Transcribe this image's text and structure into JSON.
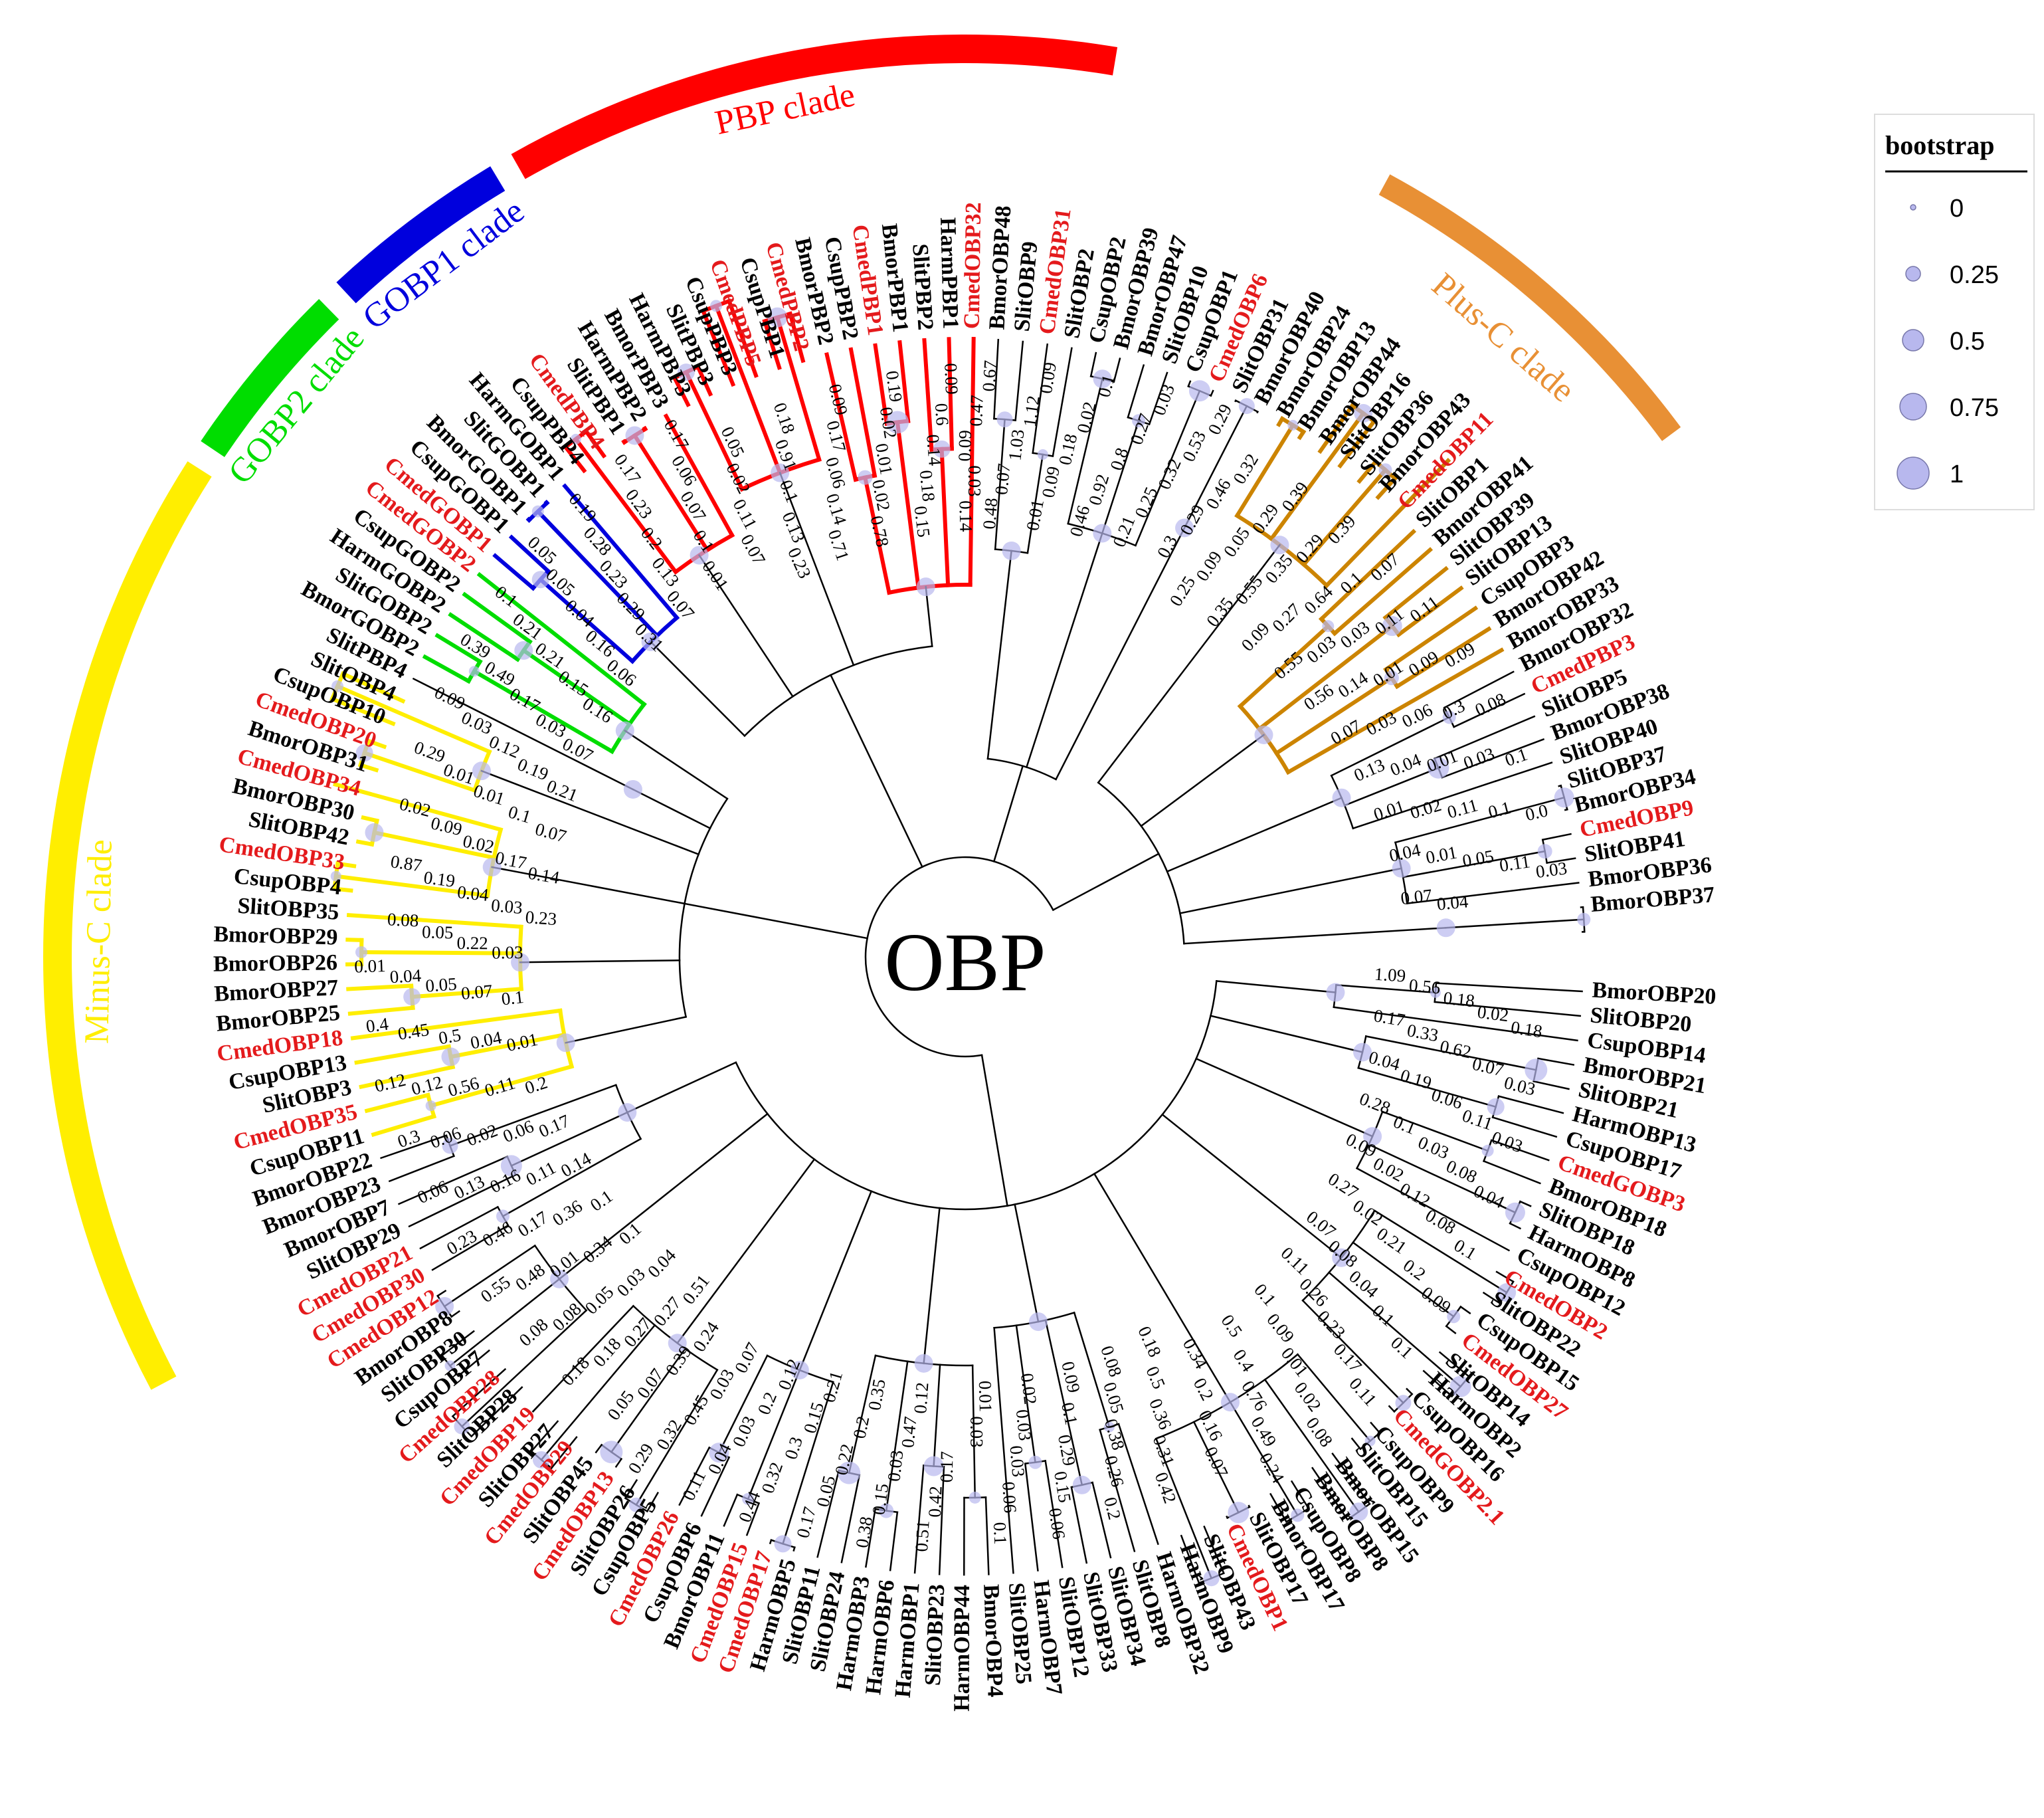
{
  "center_label": "OBP",
  "colors": {
    "cmed_highlight": "#e41a1c",
    "PBP": "#ff0000",
    "GOBP1": "#0000dd",
    "GOBP2": "#00dd00",
    "Minus-C": "#ffee00",
    "Plus-C": "#cc8400",
    "Plus-C-band": "#e89035",
    "bootstrap_dot": "#b8b8ee"
  },
  "clades": [
    {
      "id": "plusc",
      "label": "Plus-C clade"
    },
    {
      "id": "pbp",
      "label": "PBP clade"
    },
    {
      "id": "gobp1",
      "label": "GOBP1 clade"
    },
    {
      "id": "gobp2",
      "label": "GOBP2 clade"
    },
    {
      "id": "minusc",
      "label": "Minus-C clade"
    }
  ],
  "legend": {
    "title": "bootstrap",
    "items": [
      "0",
      "0.25",
      "0.5",
      "0.75",
      "1"
    ]
  },
  "leaves": [
    "BmorOBP20",
    "SlitOBP20",
    "CsupOBP14",
    "BmorOBP21",
    "SlitOBP21",
    "HarmOBP13",
    "CsupOBP17",
    "CmedGOBP3",
    "BmorOBP18",
    "SlitOBP18",
    "HarmOBP8",
    "CsupOBP12",
    "CmedOBP2",
    "SlitOBP22",
    "CsupOBP15",
    "CmedOBP27",
    "SlitOBP14",
    "HarmOBP2",
    "CsupOBP16",
    "CmedGOBP2.1",
    "CsupOBP9",
    "SlitOBP15",
    "BmorOBP15",
    "BmorOBP8",
    "CsupOBP8",
    "BmorOBP17",
    "SlitOBP17",
    "CmedOBP1",
    "SlitOBP43",
    "HarmOBP9",
    "HarmOBP32",
    "SlitOBP8",
    "SlitOBP34",
    "SlitOBP33",
    "SlitOBP12",
    "HarmOBP7",
    "SlitOBP25",
    "BmorOBP4",
    "HarmOBP44",
    "SlitOBP23",
    "HarmOBP1",
    "HarmOBP6",
    "HarmOBP3",
    "SlitOBP24",
    "SlitOBP11",
    "HarmOBP5",
    "CmedOBP17",
    "CmedOBP15",
    "BmorOBP11",
    "CsupOBP6",
    "CmedOBP26",
    "CsupOBP5",
    "SlitOBP26",
    "CmedOBP13",
    "SlitOBP45",
    "CmedOBP29",
    "SlitOBP27",
    "CmedOBP19",
    "SlitOBP28",
    "CmedOBP28",
    "CsupOBP7",
    "SlitOBP30",
    "BmorOBP8",
    "CmedOBP12",
    "CmedOBP30",
    "CmedOBP21",
    "SlitOBP29",
    "BmorOBP7",
    "BmorOBP23",
    "BmorOBP22",
    "CsupOBP11",
    "CmedOBP35",
    "SlitOBP3",
    "CsupOBP13",
    "CmedOBP18",
    "BmorOBP25",
    "BmorOBP27",
    "BmorOBP26",
    "BmorOBP29",
    "SlitOBP35",
    "CsupOBP4",
    "CmedOBP33",
    "SlitOBP42",
    "BmorOBP30",
    "CmedOBP34",
    "BmorOBP31",
    "CmedOBP20",
    "CsupOBP10",
    "SlitOBP4",
    "SlitPBP4",
    "BmorGOBP2",
    "SlitGOBP2",
    "HarmGOBP2",
    "CsupGOBP2",
    "CmedGOBP2",
    "CmedGOBP1",
    "CsupGOBP1",
    "BmorGOBP1",
    "SlitGOBP1",
    "HarmGOBP1",
    "CsupPBP4",
    "CmedPBP4",
    "SlitPBP1",
    "HarmPBP2",
    "BmorPBP3",
    "HarmPBP3",
    "SlitPBP3",
    "CsupPBP3",
    "CmedPBP5",
    "CsupPBP1",
    "CmedPBP2",
    "BmorPBP2",
    "CsupPBP2",
    "CmedPBP1",
    "BmorPBP1",
    "SlitPBP2",
    "HarmPBP1",
    "CmedOBP32",
    "BmorOBP48",
    "SlitOBP9",
    "CmedOBP31",
    "SlitOBP2",
    "CsupOBP2",
    "BmorOBP39",
    "BmorOBP47",
    "SlitOBP10",
    "CsupOBP1",
    "CmedOBP6",
    "SlitOBP31",
    "BmorOBP40",
    "BmorOBP24",
    "BmorOBP13",
    "BmorOBP44",
    "SlitOBP16",
    "SlitOBP36",
    "BmorOBP43",
    "CmedOBP11",
    "SlitOBP1",
    "BmorOBP41",
    "SlitOBP39",
    "SlitOBP13",
    "CsupOBP3",
    "BmorOBP42",
    "BmorOBP33",
    "BmorOBP32",
    "CmedPBP3",
    "SlitOBP5",
    "BmorOBP38",
    "SlitOBP40",
    "SlitOBP37",
    "BmorOBP34",
    "CmedOBP9",
    "SlitOBP41",
    "BmorOBP36",
    "BmorOBP37"
  ],
  "branch_labels": [
    "1.09",
    "0.56",
    "0.18",
    "0.02",
    "0.18",
    "0.17",
    "0.33",
    "0.62",
    "0.07",
    "0.03",
    "0.04",
    "0.19",
    "0.06",
    "0.11",
    "0.03",
    "0.28",
    "0.1",
    "0.03",
    "0.08",
    "0.04",
    "0.09",
    "0.02",
    "0.12",
    "0.08",
    "0.1",
    "0.27",
    "0.02",
    "0.21",
    "0.2",
    "0.09",
    "0.07",
    "0.08",
    "0.04",
    "0.1",
    "0.1",
    "0.11",
    "0.26",
    "0.23",
    "0.17",
    "0.11",
    "0.1",
    "0.09",
    "0.01",
    "0.02",
    "0.08",
    "0.5",
    "0.4",
    "0.76",
    "0.49",
    "0.24",
    "0.34",
    "0.2",
    "0.16",
    "0.07",
    "0.18",
    "0.5",
    "0.36",
    "0.31",
    "0.42",
    "0.08",
    "0.05",
    "0.38",
    "0.26",
    "0.2",
    "0.09",
    "0.1",
    "0.29",
    "0.15",
    "0.06",
    "0.02",
    "0.03",
    "0.03",
    "0.06",
    "0.1",
    "0.01",
    "0.03",
    "0.17",
    "0.42",
    "0.51",
    "0.12",
    "0.47",
    "0.03",
    "0.15",
    "0.38",
    "0.35",
    "0.2",
    "0.22",
    "0.05",
    "0.17",
    "0.21",
    "0.15",
    "0.3",
    "0.32",
    "0.44",
    "0.12",
    "0.2",
    "0.03",
    "0.04",
    "0.11",
    "0.07",
    "0.03",
    "0.45",
    "0.32",
    "0.29",
    "0.24",
    "0.39",
    "0.07",
    "0.05",
    "0.51",
    "0.27",
    "0.27",
    "0.18",
    "0.18",
    "0.04",
    "0.03",
    "0.05",
    "0.08",
    "0.08",
    "0.1",
    "0.34",
    "0.01",
    "0.48",
    "0.55",
    "0.1",
    "0.36",
    "0.17",
    "0.46",
    "0.23",
    "0.14",
    "0.11",
    "0.16",
    "0.13",
    "0.06",
    "0.17",
    "0.06",
    "0.02",
    "0.06",
    "0.3",
    "0.2",
    "0.11",
    "0.56",
    "0.12",
    "0.12",
    "0.01",
    "0.04",
    "0.5",
    "0.45",
    "0.4",
    "0.1",
    "0.07",
    "0.05",
    "0.04",
    "0.01",
    "0.03",
    "0.22",
    "0.05",
    "0.08",
    "0.23",
    "0.03",
    "0.04",
    "0.19",
    "0.87",
    "0.14",
    "0.17",
    "0.02",
    "0.09",
    "0.02",
    "0.07",
    "0.1",
    "0.01",
    "0.01",
    "0.29",
    "0.21",
    "0.19",
    "0.12",
    "0.03",
    "0.09",
    "0.07",
    "0.03",
    "0.17",
    "0.49",
    "0.39",
    "0.16",
    "0.15",
    "0.21",
    "0.21",
    "0.1",
    "0.06",
    "0.16",
    "0.04",
    "0.05",
    "0.05",
    "0.31",
    "0.29",
    "0.23",
    "0.28",
    "0.19",
    "0.07",
    "0.13",
    "0.2",
    "0.23",
    "0.17",
    "0.01",
    "0.1",
    "0.07",
    "0.06",
    "0.17",
    "0.07",
    "0.11",
    "0.02",
    "0.05",
    "0.23",
    "0.13",
    "0.1",
    "0.91",
    "0.18",
    "0.71",
    "0.14",
    "0.06",
    "0.17",
    "0.09",
    "0.78",
    "0.02",
    "0.01",
    "0.02",
    "0.19",
    "0.15",
    "0.18",
    "0.14",
    "0.6",
    "0.09",
    "0.14",
    "0.03",
    "0.09",
    "0.47",
    "0.67",
    "0.48",
    "0.07",
    "1.03",
    "1.12",
    "0.09",
    "0.01",
    "0.09",
    "0.18",
    "0.02",
    "0.1",
    "0.46",
    "0.92",
    "0.8",
    "0.27",
    "0.03",
    "0.21",
    "0.25",
    "0.32",
    "0.53",
    "0.29",
    "0.3",
    "0.29",
    "0.46",
    "0.32",
    "0.25",
    "0.09",
    "0.05",
    "0.29",
    "0.39",
    "0.35",
    "0.55",
    "0.35",
    "0.29",
    "0.39",
    "0.09",
    "0.27",
    "0.64",
    "0.1",
    "0.07",
    "0.55",
    "0.03",
    "0.03",
    "0.11",
    "0.11",
    "0.56",
    "0.14",
    "0.01",
    "0.09",
    "0.09",
    "0.07",
    "0.03",
    "0.06",
    "0.3",
    "0.08",
    "0.13",
    "0.04",
    "0.01",
    "0.03",
    "0.1",
    "0.01",
    "0.02",
    "0.11",
    "0.1",
    "0.0",
    "0.04",
    "0.01",
    "0.05",
    "0.11",
    "0.03",
    "0.07",
    "0.04"
  ]
}
